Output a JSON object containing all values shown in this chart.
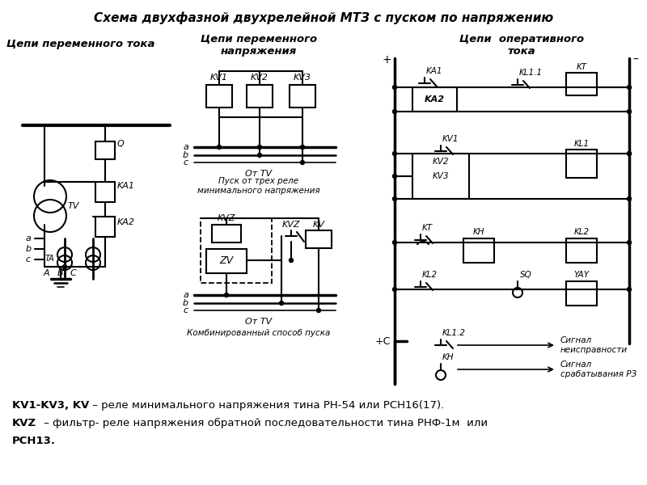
{
  "title": "Схема двухфазной двухрелейной МТЗ с пуском по напряжению",
  "bg_color": "#ffffff",
  "section1_title": "Цепи переменного тока",
  "section2_title": "Цепи переменного\nнапряжения",
  "section3_title": "Цепи  оперативного\nтока",
  "bottom_text1_normal": " – реле минимального напряжения тина РН-54 или РСН16(17).",
  "bottom_text1_bold": "KV1-KV3, KV",
  "bottom_text2_normal": " – фильтр- реле напряжения обратной последовательности тина РНФ-1м  или",
  "bottom_text2_bold": "KVZ",
  "bottom_text3": "РСН13.",
  "caption_otTV1": "От TV",
  "caption_pusk": "Пуск от трех реле\nминимального напряжения",
  "caption_otTV2": "От TV",
  "caption_kombinir": "Комбинированный способ пуска",
  "signal1": "Сигнал\nнеисправности",
  "signal2": "Сигнал\nсрабатывания РЗ"
}
